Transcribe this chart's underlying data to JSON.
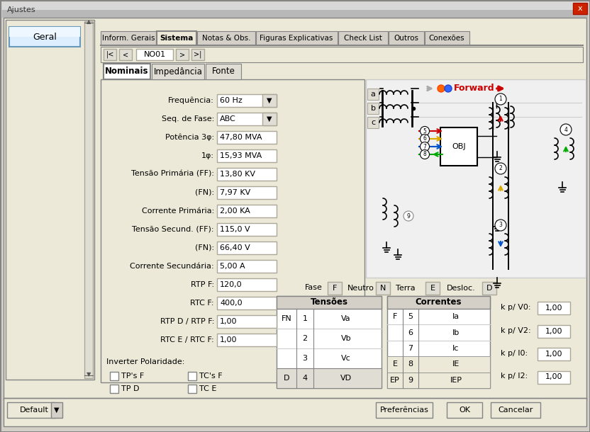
{
  "title": "Ajustes",
  "bg_color": "#d4d0c8",
  "dialog_bg": "#ece9d8",
  "panel_bg": "#ece9d8",
  "white": "#ffffff",
  "titlebar_bg": "#0a246a",
  "titlebar_text": "white",
  "tabs_main": [
    "Inform. Gerais",
    "Sistema",
    "Notas & Obs.",
    "Figuras Explicativas",
    "Check List",
    "Outros",
    "Conexões"
  ],
  "active_tab_main": "Sistema",
  "tabs_sub": [
    "Nominais",
    "Impedância",
    "Fonte"
  ],
  "active_tab_sub": "Nominais",
  "nav_label": "NO01",
  "fields": [
    {
      "label": "Frequência:",
      "value": "60 Hz",
      "type": "dropdown"
    },
    {
      "label": "Seq. de Fase:",
      "value": "ABC",
      "type": "dropdown"
    },
    {
      "label": "Potência 3φ:",
      "value": "47,80 MVA",
      "type": "text"
    },
    {
      "label": "1φ:",
      "value": "15,93 MVA",
      "type": "text"
    },
    {
      "label": "Tensão Primária (FF):",
      "value": "13,80 KV",
      "type": "text"
    },
    {
      "label": "(FN):",
      "value": "7,97 KV",
      "type": "text"
    },
    {
      "label": "Corrente Primária:",
      "value": "2,00 KA",
      "type": "text"
    },
    {
      "label": "Tensão Secund. (FF):",
      "value": "115,0 V",
      "type": "text"
    },
    {
      "label": "(FN):",
      "value": "66,40 V",
      "type": "text"
    },
    {
      "label": "Corrente Secundária:",
      "value": "5,00 A",
      "type": "text"
    },
    {
      "label": "RTP F:",
      "value": "120,0",
      "type": "text"
    },
    {
      "label": "RTC F:",
      "value": "400,0",
      "type": "text"
    },
    {
      "label": "RTP D / RTP F:",
      "value": "1,00",
      "type": "text"
    },
    {
      "label": "RTC E / RTC F:",
      "value": "1,00",
      "type": "text"
    }
  ],
  "inverter_label": "Inverter Polaridade:",
  "checkboxes": [
    "TP's F",
    "TC's F",
    "TP D",
    "TC E"
  ],
  "bottom_buttons": [
    "Preferências",
    "OK",
    "Cancelar"
  ],
  "default_btn": "Default",
  "fase_labels": [
    "Fase",
    "F",
    "Neutro",
    "N",
    "Terra",
    "E",
    "Desloc.",
    "D"
  ],
  "tensoes_header": "Tensões",
  "correntes_header": "Correntes",
  "tensoes_rows": [
    [
      "FN",
      "1",
      "Va"
    ],
    [
      "",
      "2",
      "Vb"
    ],
    [
      "",
      "3",
      "Vc"
    ],
    [
      "D",
      "4",
      "VD"
    ]
  ],
  "correntes_rows": [
    [
      "F",
      "5",
      "Ia"
    ],
    [
      "",
      "6",
      "Ib"
    ],
    [
      "",
      "7",
      "Ic"
    ],
    [
      "E",
      "8",
      "IE"
    ],
    [
      "EP",
      "9",
      "IEP"
    ]
  ],
  "kp_labels": [
    "k p/ V0:",
    "k p/ V2:",
    "k p/ I0:",
    "k p/ I2:"
  ],
  "kp_values": [
    "1,00",
    "1,00",
    "1,00",
    "1,00"
  ],
  "forward_text": "Forward",
  "abc_labels": [
    "a",
    "b",
    "c"
  ]
}
